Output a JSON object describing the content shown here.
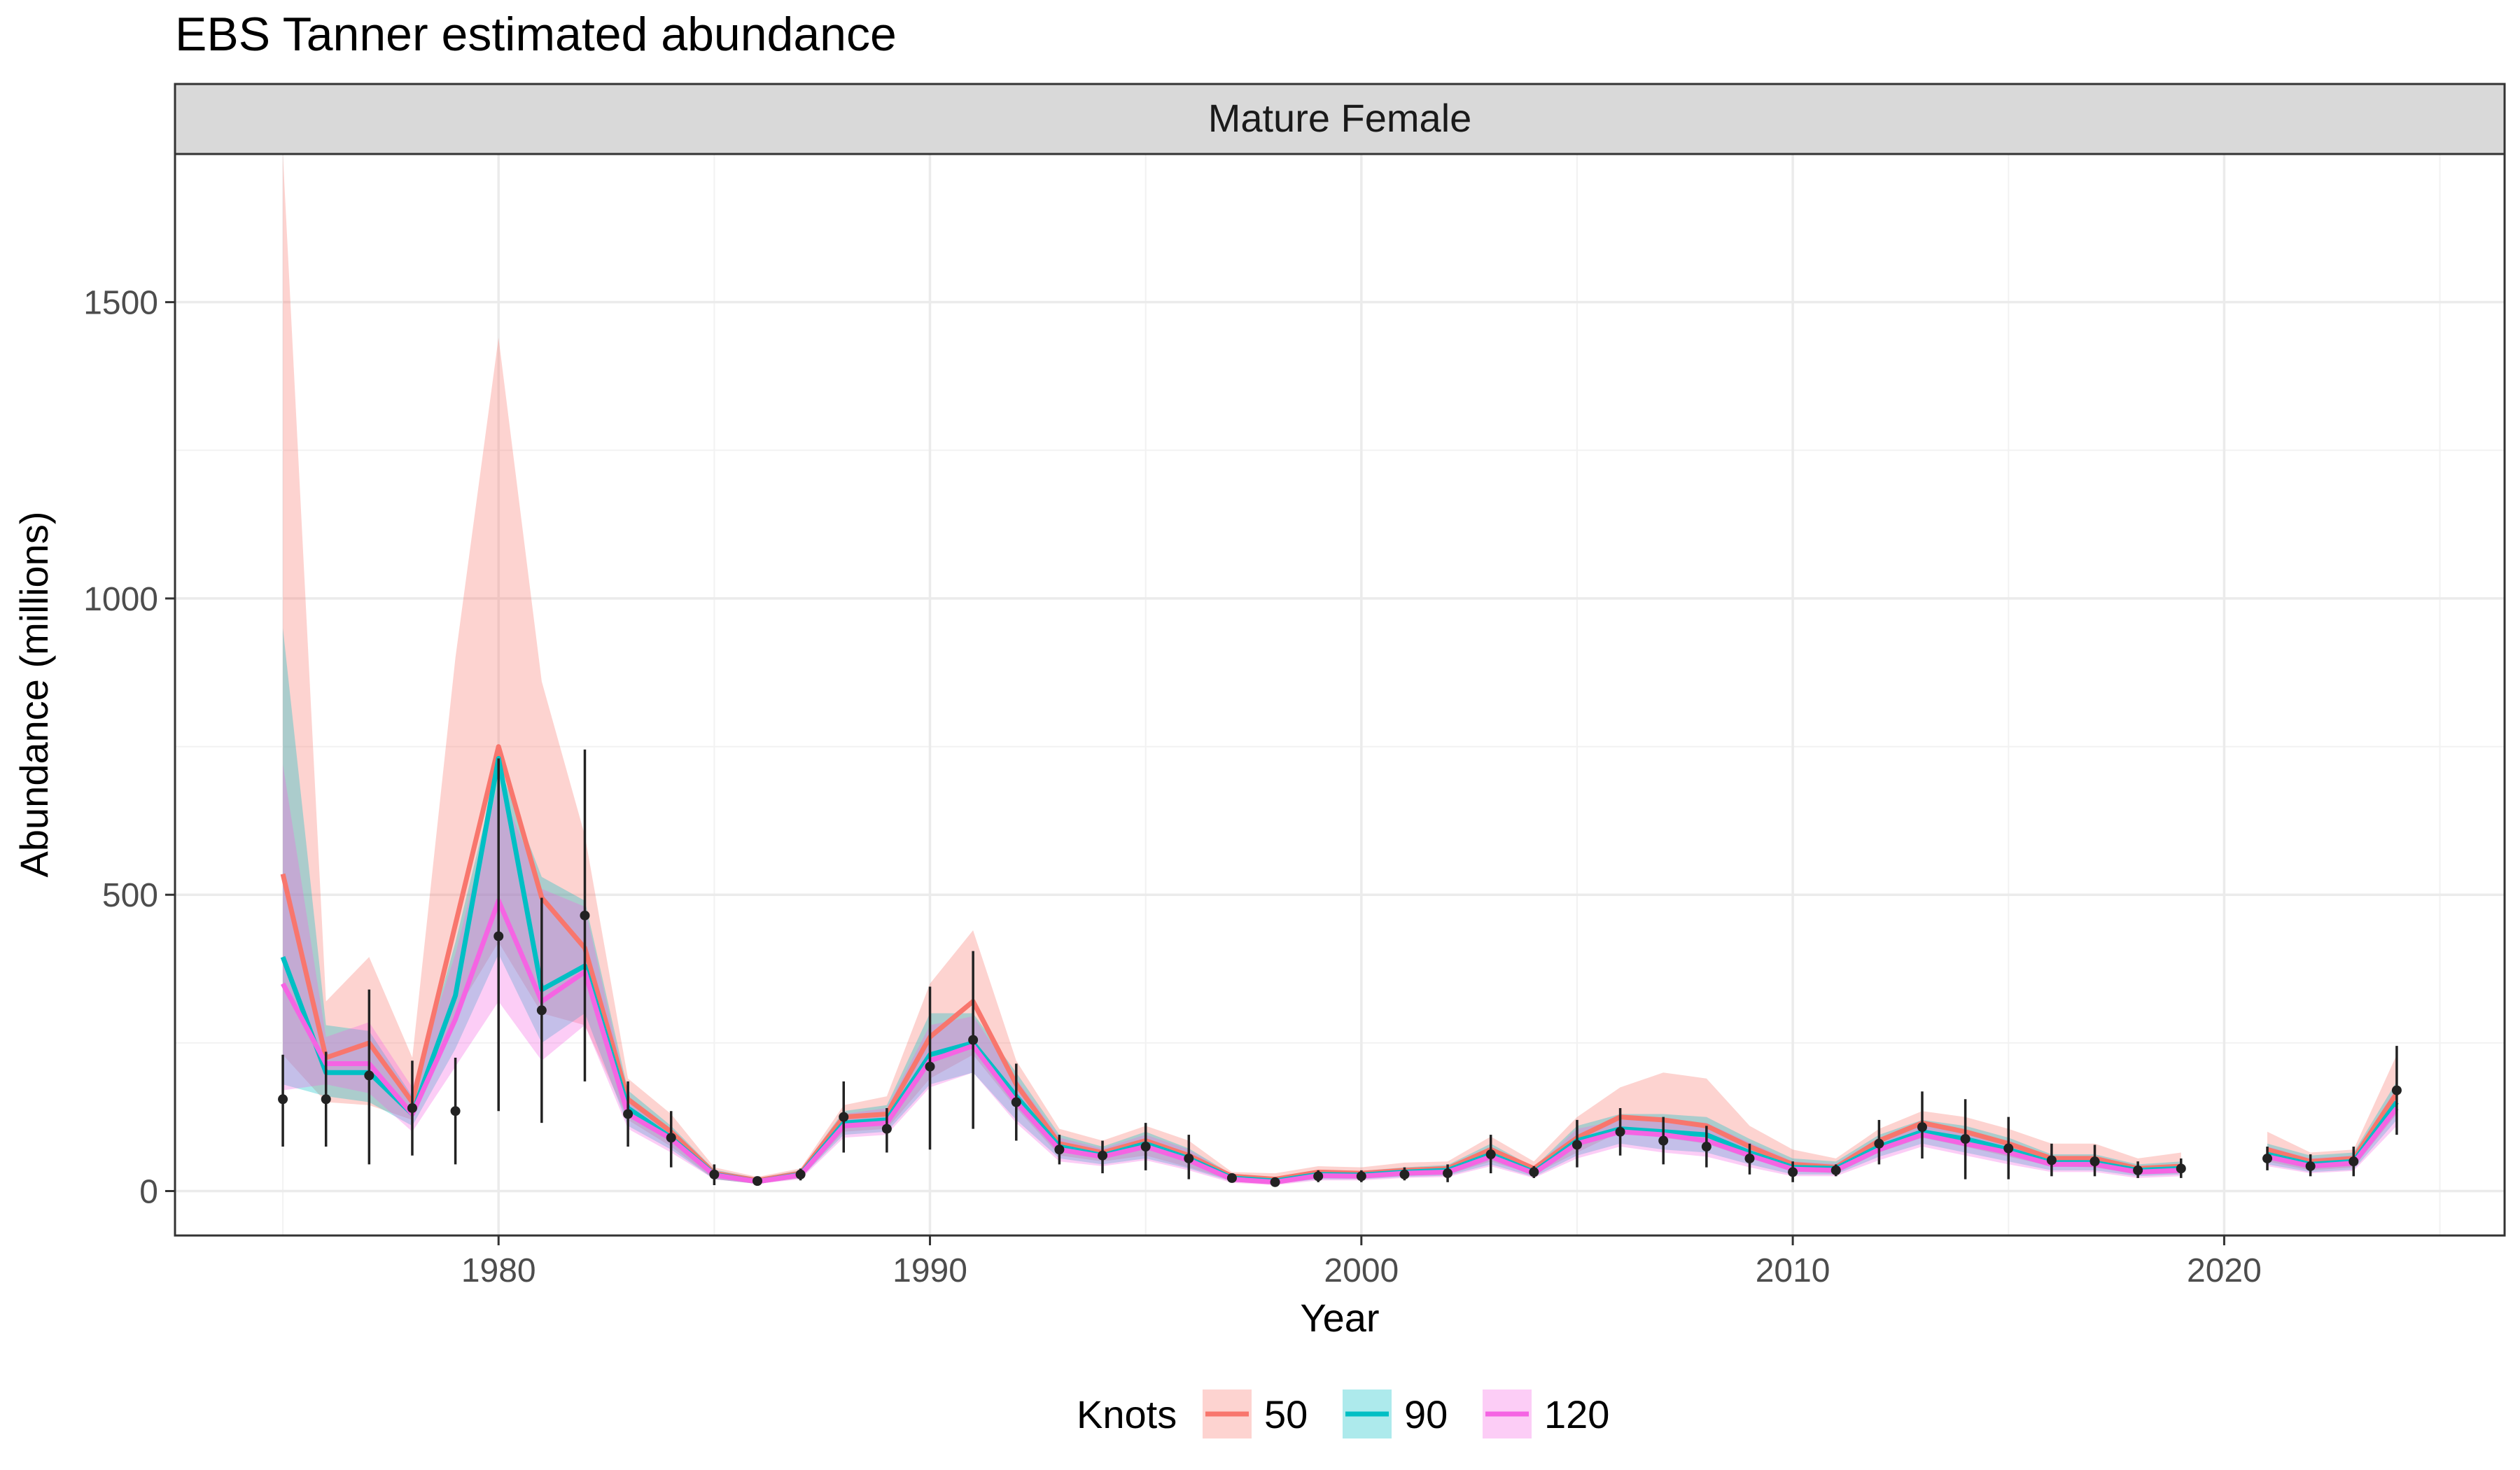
{
  "chart_data": {
    "type": "line",
    "title": "EBS Tanner estimated abundance",
    "facet_label": "Mature Female",
    "xlabel": "Year",
    "ylabel": "Abundance (millions)",
    "xlim": [
      1972.5,
      2026.5
    ],
    "ylim": [
      -75,
      1750
    ],
    "x_ticks": [
      1980,
      1990,
      2000,
      2010,
      2020
    ],
    "y_ticks": [
      0,
      500,
      1000,
      1500
    ],
    "grid": true,
    "legend": {
      "title": "Knots",
      "position": "bottom"
    },
    "series": [
      {
        "name": "50",
        "color": "#F8766D",
        "segments": [
          {
            "x": [
              1975,
              1976,
              1977,
              1978,
              1979,
              1980,
              1981,
              1982,
              1983,
              1984,
              1985,
              1986,
              1987,
              1988,
              1989,
              1990,
              1991,
              1992,
              1993,
              1994,
              1995,
              1996,
              1997,
              1998,
              1999,
              2000,
              2001,
              2002,
              2003,
              2004,
              2005,
              2006,
              2007,
              2008,
              2009,
              2010,
              2011,
              2012,
              2013,
              2014,
              2015,
              2016,
              2017,
              2018,
              2019
            ],
            "y": [
              535,
              225,
              250,
              150,
              450,
              750,
              495,
              410,
              155,
              100,
              30,
              18,
              30,
              125,
              130,
              260,
              320,
              180,
              80,
              65,
              85,
              60,
              25,
              20,
              32,
              30,
              35,
              38,
              70,
              38,
              90,
              125,
              120,
              110,
              75,
              45,
              40,
              85,
              115,
              100,
              80,
              55,
              55,
              38,
              42
            ],
            "lower": [
              230,
              150,
              145,
              120,
              300,
              420,
              300,
              280,
              120,
              75,
              20,
              12,
              22,
              100,
              105,
              190,
              230,
              140,
              60,
              50,
              60,
              40,
              18,
              14,
              24,
              22,
              26,
              28,
              50,
              28,
              65,
              100,
              90,
              80,
              55,
              35,
              30,
              65,
              90,
              75,
              58,
              42,
              40,
              28,
              30
            ],
            "upper": [
              1750,
              320,
              395,
              225,
              900,
              1440,
              860,
              600,
              190,
              130,
              40,
              24,
              38,
              145,
              160,
              350,
              440,
              220,
              105,
              85,
              110,
              85,
              32,
              30,
              42,
              40,
              48,
              50,
              92,
              50,
              125,
              175,
              200,
              190,
              110,
              70,
              55,
              105,
              135,
              125,
              105,
              80,
              80,
              55,
              65
            ]
          },
          {
            "x": [
              2021,
              2022,
              2023,
              2024
            ],
            "y": [
              70,
              50,
              55,
              165
            ],
            "lower": [
              50,
              35,
              40,
              130
            ],
            "upper": [
              100,
              65,
              70,
              230
            ]
          }
        ]
      },
      {
        "name": "90",
        "color": "#00BFC4",
        "segments": [
          {
            "x": [
              1975,
              1976,
              1977,
              1978,
              1979,
              1980,
              1981,
              1982,
              1983,
              1984,
              1985,
              1986,
              1987,
              1988,
              1989,
              1990,
              1991,
              1992,
              1993,
              1994,
              1995,
              1996,
              1997,
              1998,
              1999,
              2000,
              2001,
              2002,
              2003,
              2004,
              2005,
              2006,
              2007,
              2008,
              2009,
              2010,
              2011,
              2012,
              2013,
              2014,
              2015,
              2016,
              2017,
              2018,
              2019
            ],
            "y": [
              395,
              200,
              200,
              130,
              330,
              730,
              340,
              380,
              140,
              90,
              28,
              16,
              28,
              115,
              120,
              230,
              250,
              160,
              75,
              60,
              80,
              55,
              22,
              17,
              28,
              27,
              32,
              35,
              62,
              32,
              85,
              105,
              100,
              95,
              65,
              40,
              38,
              75,
              100,
              88,
              70,
              48,
              48,
              35,
              38
            ],
            "lower": [
              180,
              160,
              150,
              110,
              240,
              400,
              250,
              300,
              110,
              70,
              20,
              12,
              22,
              95,
              100,
              180,
              200,
              120,
              55,
              45,
              55,
              38,
              16,
              12,
              20,
              20,
              24,
              26,
              45,
              24,
              60,
              80,
              70,
              65,
              45,
              28,
              28,
              58,
              80,
              65,
              50,
              35,
              35,
              25,
              28
            ],
            "upper": [
              950,
              280,
              270,
              160,
              420,
              720,
              530,
              490,
              170,
              110,
              36,
              22,
              35,
              135,
              145,
              300,
              300,
              200,
              95,
              75,
              100,
              72,
              28,
              23,
              36,
              34,
              40,
              44,
              80,
              40,
              110,
              130,
              130,
              125,
              88,
              55,
              50,
              95,
              120,
              110,
              90,
              62,
              62,
              45,
              50
            ]
          },
          {
            "x": [
              2021,
              2022,
              2023,
              2024
            ],
            "y": [
              62,
              45,
              50,
              150
            ],
            "lower": [
              45,
              32,
              36,
              120
            ],
            "upper": [
              80,
              60,
              65,
              185
            ]
          }
        ]
      },
      {
        "name": "120",
        "color": "#F564E3",
        "segments": [
          {
            "x": [
              1975,
              1976,
              1977,
              1978,
              1979,
              1980,
              1981,
              1982,
              1983,
              1984,
              1985,
              1986,
              1987,
              1988,
              1989,
              1990,
              1991,
              1992,
              1993,
              1994,
              1995,
              1996,
              1997,
              1998,
              1999,
              2000,
              2001,
              2002,
              2003,
              2004,
              2005,
              2006,
              2007,
              2008,
              2009,
              2010,
              2011,
              2012,
              2013,
              2014,
              2015,
              2016,
              2017,
              2018,
              2019
            ],
            "y": [
              350,
              215,
              215,
              130,
              290,
              490,
              320,
              370,
              130,
              88,
              27,
              16,
              27,
              110,
              115,
              220,
              245,
              150,
              70,
              58,
              75,
              52,
              20,
              15,
              26,
              25,
              30,
              32,
              58,
              30,
              80,
              100,
              95,
              85,
              60,
              37,
              35,
              70,
              95,
              80,
              65,
              45,
              45,
              32,
              35
            ],
            "lower": [
              170,
              180,
              165,
              100,
              210,
              320,
              220,
              280,
              105,
              65,
              20,
              12,
              20,
              90,
              95,
              175,
              200,
              115,
              50,
              42,
              52,
              35,
              14,
              10,
              18,
              18,
              22,
              24,
              42,
              22,
              55,
              75,
              65,
              58,
              40,
              25,
              25,
              52,
              75,
              60,
              45,
              32,
              32,
              22,
              25
            ],
            "upper": [
              720,
              260,
              285,
              175,
              400,
              690,
              510,
              480,
              160,
              105,
              35,
              20,
              33,
              130,
              140,
              280,
              295,
              190,
              90,
              72,
              95,
              70,
              26,
              21,
              34,
              32,
              38,
              40,
              75,
              38,
              105,
              120,
              120,
              115,
              82,
              50,
              46,
              90,
              115,
              100,
              85,
              58,
              58,
              42,
              46
            ],
            "upper_note": ""
          },
          {
            "x": [
              2021,
              2022,
              2023,
              2024
            ],
            "y": [
              58,
              42,
              47,
              140
            ],
            "lower": [
              42,
              30,
              34,
              110
            ],
            "upper": [
              75,
              55,
              60,
              175
            ]
          }
        ]
      }
    ],
    "observations": {
      "name": "",
      "color": "#222222",
      "x": [
        1975,
        1976,
        1977,
        1978,
        1979,
        1980,
        1981,
        1982,
        1983,
        1984,
        1985,
        1986,
        1987,
        1988,
        1989,
        1990,
        1991,
        1992,
        1993,
        1994,
        1995,
        1996,
        1997,
        1998,
        1999,
        2000,
        2001,
        2002,
        2003,
        2004,
        2005,
        2006,
        2007,
        2008,
        2009,
        2010,
        2011,
        2012,
        2013,
        2014,
        2015,
        2016,
        2017,
        2018,
        2019,
        2021,
        2022,
        2023,
        2024
      ],
      "y": [
        155,
        155,
        195,
        140,
        135,
        430,
        305,
        465,
        130,
        90,
        28,
        17,
        28,
        125,
        105,
        210,
        255,
        150,
        70,
        60,
        75,
        55,
        22,
        15,
        25,
        25,
        28,
        30,
        62,
        32,
        78,
        100,
        85,
        75,
        55,
        32,
        35,
        80,
        108,
        88,
        72,
        52,
        50,
        35,
        38,
        55,
        42,
        50,
        170
      ],
      "lower": [
        75,
        75,
        45,
        60,
        45,
        135,
        115,
        185,
        75,
        40,
        10,
        13,
        18,
        65,
        65,
        70,
        105,
        85,
        45,
        30,
        35,
        20,
        17,
        12,
        15,
        15,
        18,
        15,
        30,
        22,
        40,
        60,
        45,
        40,
        28,
        15,
        25,
        45,
        55,
        20,
        20,
        25,
        25,
        22,
        22,
        35,
        25,
        25,
        95
      ],
      "upper": [
        230,
        235,
        340,
        220,
        225,
        730,
        495,
        745,
        185,
        135,
        45,
        22,
        38,
        185,
        140,
        345,
        405,
        215,
        95,
        85,
        115,
        95,
        28,
        19,
        35,
        35,
        40,
        45,
        95,
        42,
        120,
        140,
        125,
        110,
        80,
        50,
        45,
        120,
        168,
        155,
        125,
        80,
        78,
        50,
        55,
        75,
        62,
        75,
        245
      ]
    }
  }
}
